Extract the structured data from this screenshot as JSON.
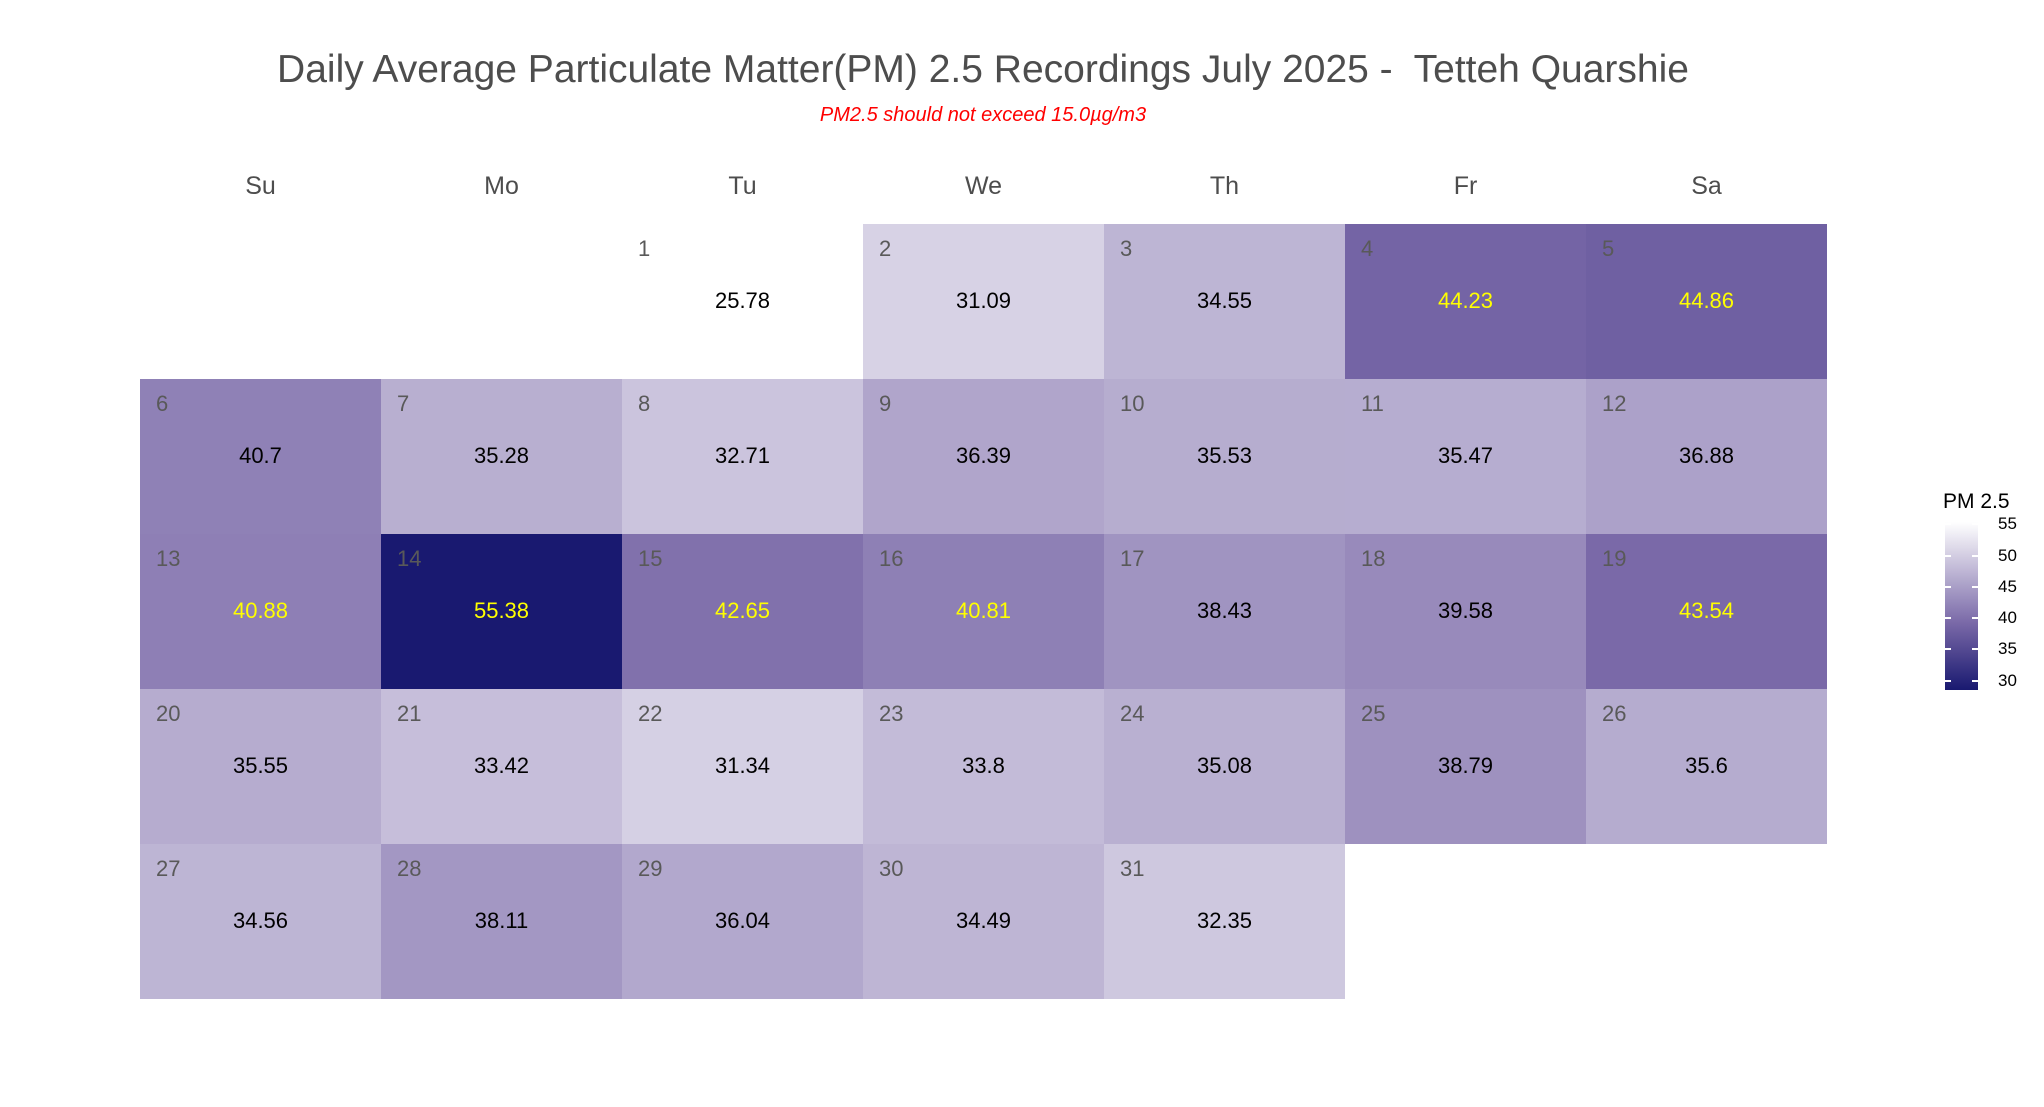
{
  "chart_data": {
    "type": "heatmap",
    "title": "Daily Average Particulate Matter(PM) 2.5 Recordings July 2025 -  Tetteh Quarshie",
    "subtitle": "PM2.5 should not exceed 15.0µg/m3",
    "weekdays": [
      "Su",
      "Mo",
      "Tu",
      "We",
      "Th",
      "Fr",
      "Sa"
    ],
    "first_weekday_index": 2,
    "days": [
      1,
      2,
      3,
      4,
      5,
      6,
      7,
      8,
      9,
      10,
      11,
      12,
      13,
      14,
      15,
      16,
      17,
      18,
      19,
      20,
      21,
      22,
      23,
      24,
      25,
      26,
      27,
      28,
      29,
      30,
      31
    ],
    "values": [
      "25.78",
      "31.09",
      "34.55",
      "44.23",
      "44.86",
      "40.7",
      "35.28",
      "32.71",
      "36.39",
      "35.53",
      "35.47",
      "36.88",
      "40.88",
      "55.38",
      "42.65",
      "40.81",
      "38.43",
      "39.58",
      "43.54",
      "35.55",
      "33.42",
      "31.34",
      "33.8",
      "35.08",
      "38.79",
      "35.6",
      "34.56",
      "38.11",
      "36.04",
      "34.49",
      "32.35"
    ],
    "legend": {
      "title": "PM 2.5",
      "ticks": [
        "55",
        "50",
        "45",
        "40",
        "35",
        "30"
      ],
      "range": [
        28.5,
        55.38
      ],
      "placement": "right"
    },
    "colors": {
      "low": "#ffffff",
      "mid": "#7a69a8",
      "high": "#191970",
      "label_dark": "#000000",
      "label_light": "#ffff00"
    }
  }
}
